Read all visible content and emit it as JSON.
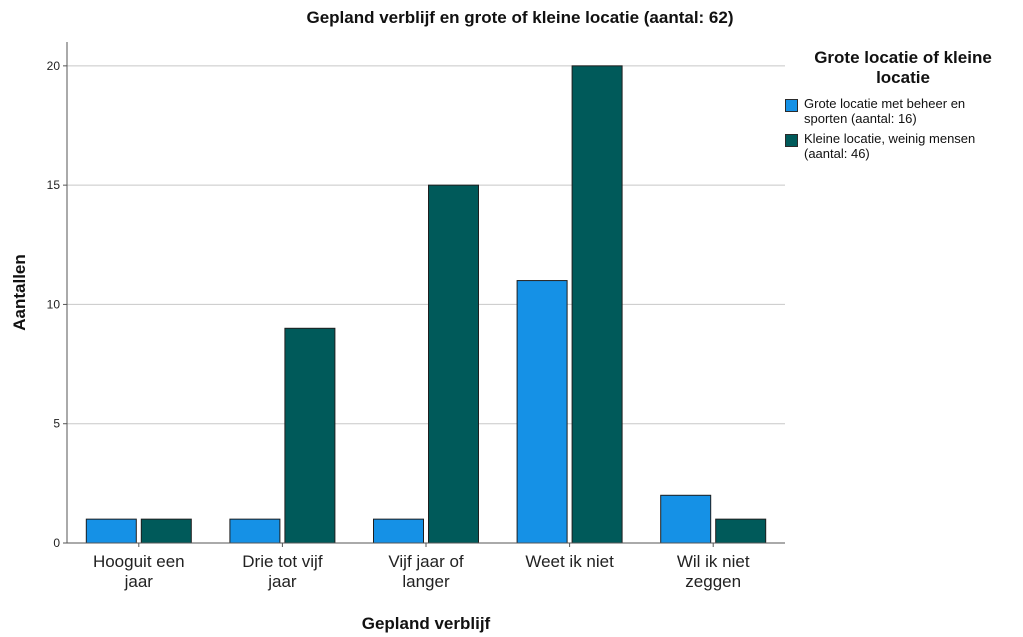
{
  "chart_data": {
    "type": "bar",
    "title": "Gepland verblijf en grote of kleine locatie (aantal: 62)",
    "xlabel": "Gepland verblijf",
    "ylabel": "Aantallen",
    "categories": [
      [
        "Hooguit een",
        "jaar"
      ],
      [
        "Drie tot vijf",
        "jaar"
      ],
      [
        "Vijf jaar of",
        "langer"
      ],
      [
        "Weet ik niet"
      ],
      [
        "Wil ik niet",
        "zeggen"
      ]
    ],
    "series": [
      {
        "name": "Grote locatie met beheer en sporten (aantal: 16)",
        "legend_lines": [
          "Grote locatie met beheer en",
          "sporten (aantal: 16)"
        ],
        "color": "#1591e6",
        "values": [
          1,
          1,
          1,
          11,
          2
        ]
      },
      {
        "name": "Kleine locatie, weinig mensen (aantal: 46)",
        "legend_lines": [
          "Kleine locatie, weinig mensen",
          "(aantal: 46)"
        ],
        "color": "#005a5a",
        "values": [
          1,
          9,
          15,
          20,
          1
        ]
      }
    ],
    "ylim": [
      0,
      21.0
    ],
    "yticks": [
      0,
      5,
      10,
      15,
      20
    ],
    "grid": true,
    "legend": {
      "title": "Grote locatie of kleine locatie",
      "title_lines": [
        "Grote locatie of kleine",
        "locatie"
      ],
      "placement": "right"
    }
  }
}
